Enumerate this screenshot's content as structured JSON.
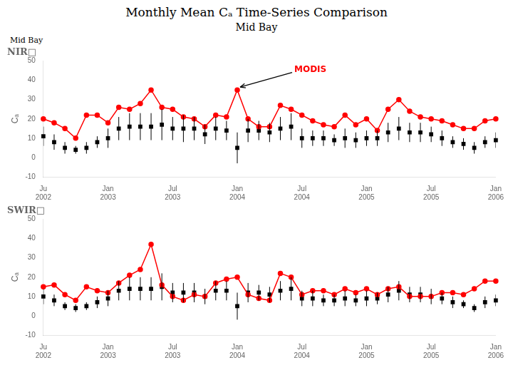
{
  "title": "Monthly Mean Cₐ Time-Series Comparison",
  "subtitle": "Mid Bay",
  "annotations": [
    {
      "text": "Mid Bay"
    }
  ],
  "chart_data": [
    {
      "type": "line",
      "title": "NIR□",
      "ylabel": "Cₐ",
      "categories": [
        "Ju\n2002",
        null,
        null,
        null,
        null,
        null,
        "Jan\n2003",
        null,
        null,
        null,
        null,
        null,
        "Jul\n2003",
        null,
        null,
        null,
        null,
        null,
        "Jan\n2004",
        null,
        null,
        null,
        null,
        null,
        "Jul\n2004",
        null,
        null,
        null,
        null,
        null,
        "Jan\n2005",
        null,
        null,
        null,
        null,
        null,
        "Jul\n2005",
        null,
        null,
        null,
        null,
        null,
        "Jan\n2006"
      ],
      "series": [
        {
          "color": "red",
          "marker": "circle",
          "line_style": "solid",
          "values": [
            20,
            18,
            15,
            10,
            22,
            22,
            18,
            26,
            25,
            28,
            35,
            26,
            25,
            21,
            20,
            16,
            22,
            21,
            35,
            20,
            16,
            16,
            27,
            25,
            22,
            19,
            17,
            16,
            22,
            17,
            20,
            14,
            25,
            30,
            24,
            21,
            20,
            19,
            17,
            15,
            15,
            19,
            20
          ]
        },
        {
          "color": "black",
          "marker": "square",
          "line_style": "none",
          "values": [
            11,
            8,
            5,
            4,
            5,
            8,
            10,
            15,
            16,
            16,
            16,
            17,
            15,
            15,
            15,
            12,
            15,
            14,
            5,
            14,
            14,
            13,
            15,
            16,
            10,
            10,
            10,
            9,
            10,
            9,
            10,
            10,
            13,
            15,
            13,
            13,
            12,
            10,
            8,
            7,
            5,
            8,
            9
          ],
          "errors": [
            5,
            4,
            3,
            2,
            3,
            3,
            5,
            6,
            7,
            7,
            7,
            8,
            6,
            7,
            6,
            5,
            6,
            5,
            8,
            6,
            5,
            5,
            6,
            7,
            5,
            4,
            4,
            3,
            5,
            4,
            4,
            4,
            5,
            6,
            5,
            5,
            4,
            4,
            3,
            3,
            3,
            3,
            4
          ]
        }
      ],
      "ylim": [
        -10,
        50
      ],
      "yticks": [
        -10,
        0,
        10,
        20,
        30,
        40,
        50
      ],
      "grid": false,
      "annotations": [
        {
          "text": "MODIS",
          "x": "Jan\n2004",
          "y": 35,
          "color": "red"
        }
      ]
    },
    {
      "type": "line",
      "title": "SWIR□",
      "ylabel": "Cₐ",
      "categories": [
        "Ju\n2002",
        null,
        null,
        null,
        null,
        null,
        "Jan\n2003",
        null,
        null,
        null,
        null,
        null,
        "Jul\n2003",
        null,
        null,
        null,
        null,
        null,
        "Jan\n2004",
        null,
        null,
        null,
        null,
        null,
        "Jul\n2004",
        null,
        null,
        null,
        null,
        null,
        "Jan\n2005",
        null,
        null,
        null,
        null,
        null,
        "Jul\n2005",
        null,
        null,
        null,
        null,
        null,
        "Jan\n2006"
      ],
      "series": [
        {
          "color": "red",
          "marker": "circle",
          "line_style": "solid",
          "values": [
            15,
            16,
            11,
            8,
            15,
            13,
            12,
            17,
            21,
            24,
            37,
            16,
            10,
            8,
            11,
            10,
            17,
            19,
            20,
            11,
            9,
            8,
            22,
            20,
            11,
            13,
            13,
            11,
            14,
            12,
            14,
            11,
            14,
            15,
            10,
            10,
            10,
            12,
            12,
            11,
            14,
            18,
            18
          ]
        },
        {
          "color": "black",
          "marker": "square",
          "line_style": "none",
          "values": [
            10,
            8,
            5,
            4,
            5,
            7,
            9,
            13,
            14,
            14,
            14,
            15,
            12,
            12,
            12,
            10,
            13,
            13,
            5,
            12,
            12,
            11,
            13,
            14,
            9,
            9,
            8,
            8,
            9,
            8,
            9,
            9,
            11,
            13,
            11,
            11,
            10,
            9,
            7,
            6,
            4,
            7,
            8
          ],
          "errors": [
            4,
            3,
            2,
            2,
            2,
            3,
            4,
            5,
            6,
            6,
            6,
            7,
            5,
            5,
            5,
            4,
            5,
            5,
            7,
            5,
            4,
            4,
            5,
            6,
            4,
            4,
            3,
            3,
            4,
            3,
            4,
            3,
            4,
            5,
            4,
            4,
            4,
            3,
            3,
            2,
            2,
            3,
            3
          ]
        }
      ],
      "ylim": [
        -10,
        50
      ],
      "yticks": [
        -10,
        0,
        10,
        20,
        30,
        40,
        50
      ],
      "grid": false
    }
  ]
}
